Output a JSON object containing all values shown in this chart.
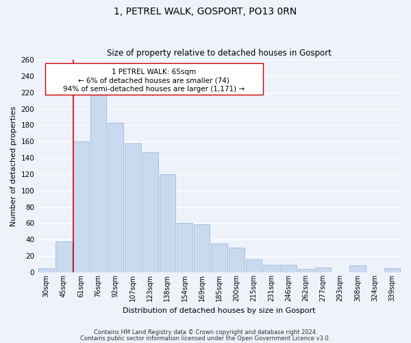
{
  "title": "1, PETREL WALK, GOSPORT, PO13 0RN",
  "subtitle": "Size of property relative to detached houses in Gosport",
  "xlabel": "Distribution of detached houses by size in Gosport",
  "ylabel": "Number of detached properties",
  "categories": [
    "30sqm",
    "45sqm",
    "61sqm",
    "76sqm",
    "92sqm",
    "107sqm",
    "123sqm",
    "138sqm",
    "154sqm",
    "169sqm",
    "185sqm",
    "200sqm",
    "215sqm",
    "231sqm",
    "246sqm",
    "262sqm",
    "277sqm",
    "293sqm",
    "308sqm",
    "324sqm",
    "339sqm"
  ],
  "values": [
    5,
    38,
    160,
    219,
    183,
    158,
    147,
    120,
    60,
    59,
    35,
    30,
    16,
    9,
    9,
    4,
    6,
    0,
    8,
    0,
    5
  ],
  "bar_color": "#c9d9f0",
  "bar_edge_color": "#a8c0d8",
  "highlight_line_color": "#cc0000",
  "annotation_line1": "1 PETREL WALK: 65sqm",
  "annotation_line2": "← 6% of detached houses are smaller (74)",
  "annotation_line3": "94% of semi-detached houses are larger (1,171) →",
  "ylim": [
    0,
    260
  ],
  "yticks": [
    0,
    20,
    40,
    60,
    80,
    100,
    120,
    140,
    160,
    180,
    200,
    220,
    240,
    260
  ],
  "footer_line1": "Contains HM Land Registry data © Crown copyright and database right 2024.",
  "footer_line2": "Contains public sector information licensed under the Open Government Licence v3.0.",
  "bg_color": "#eef2fb",
  "grid_color": "#ffffff"
}
